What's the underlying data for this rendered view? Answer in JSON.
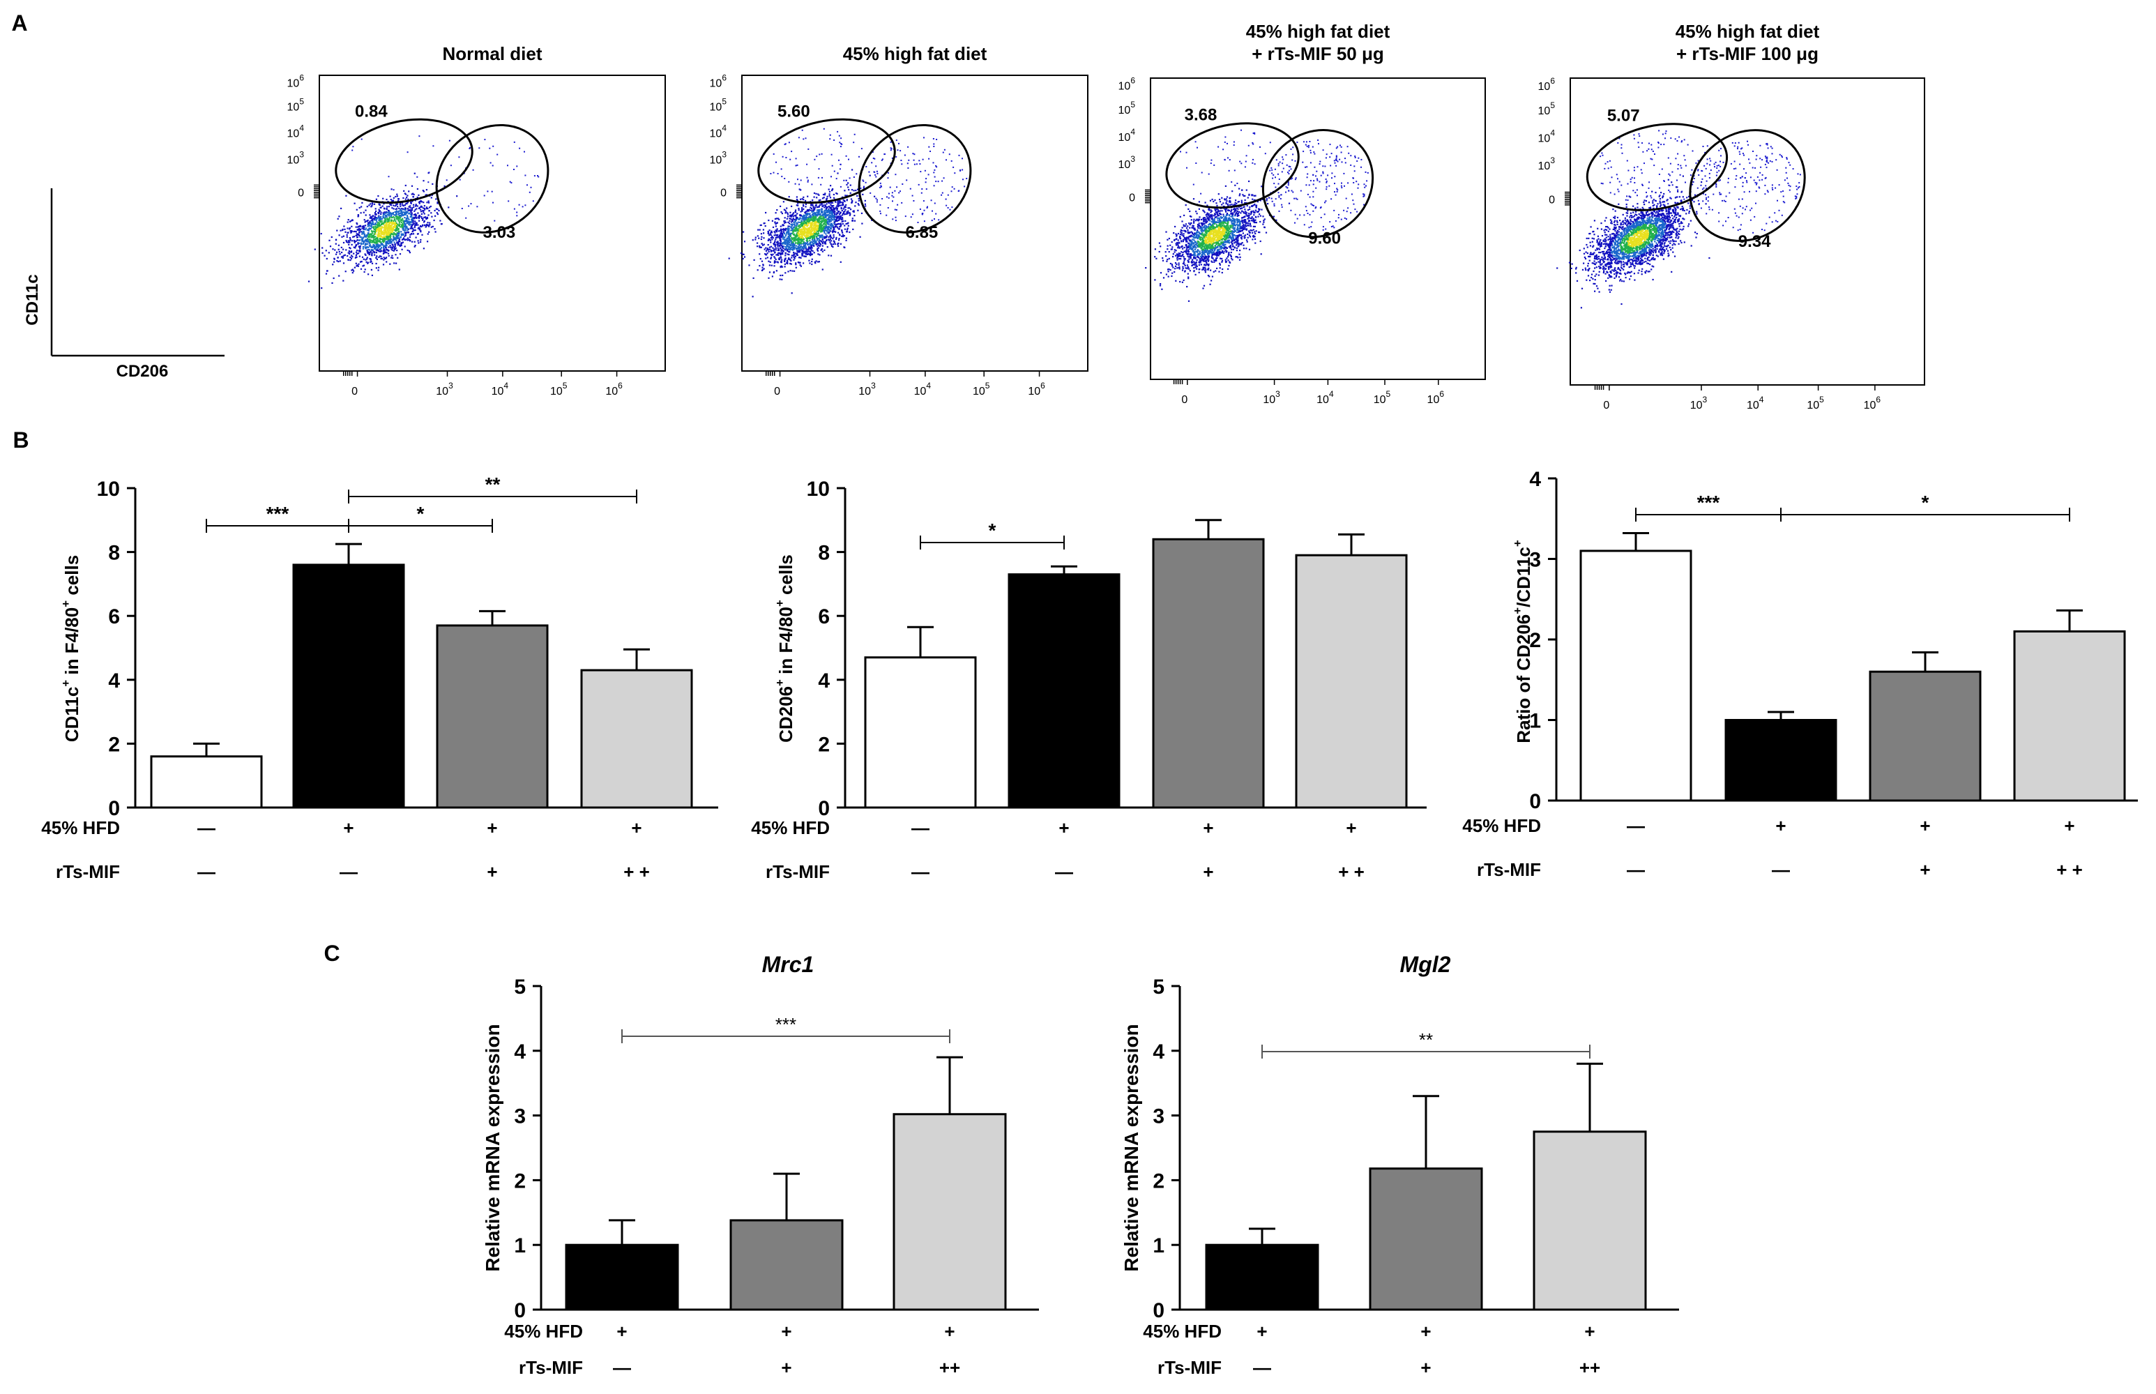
{
  "panel_labels": {
    "a": "A",
    "b": "B",
    "c": "C"
  },
  "axis_key": {
    "x": "CD206",
    "y": "CD11c"
  },
  "ticks": {
    "flow_y": [
      "10",
      "10",
      "10",
      "10",
      "0"
    ],
    "flow_y_exp": [
      "6",
      "5",
      "4",
      "3",
      ""
    ],
    "flow_x": [
      "0",
      "10",
      "10",
      "10",
      "10"
    ],
    "flow_x_exp": [
      "",
      "3",
      "4",
      "5",
      "6"
    ]
  },
  "group_labels": {
    "hfd": "45% HFD",
    "mif": "rTs-MIF"
  },
  "chart_data": [
    {
      "type": "scatter",
      "panel": "A",
      "plots": [
        {
          "title": [
            "Normal diet"
          ],
          "cd11c_gate": "0.84",
          "cd206_gate": "3.03"
        },
        {
          "title": [
            "45% high fat diet"
          ],
          "cd11c_gate": "5.60",
          "cd206_gate": "6.85"
        },
        {
          "title": [
            "45% high fat diet",
            "+ rTs-MIF 50 μg"
          ],
          "cd11c_gate": "3.68",
          "cd206_gate": "9.60"
        },
        {
          "title": [
            "45% high fat diet",
            "+ rTs-MIF 100 μg"
          ],
          "cd11c_gate": "5.07",
          "cd206_gate": "9.34"
        }
      ],
      "xlabel": "CD206",
      "ylabel": "CD11c"
    },
    {
      "type": "bar",
      "panel": "B",
      "ylabel": {
        "main": "CD11c",
        "sup1": "+",
        "mid": " in F4/80",
        "sup2": "+",
        "tail": " cells"
      },
      "ylim": [
        0,
        10
      ],
      "yticks": [
        0,
        2,
        4,
        6,
        8,
        10
      ],
      "values": [
        1.6,
        7.6,
        5.7,
        4.3
      ],
      "errors": [
        0.4,
        0.65,
        0.45,
        0.65
      ],
      "colors": [
        "#ffffff",
        "#000000",
        "#7f7f7f",
        "#d3d3d3"
      ],
      "hfd": [
        "—",
        "+",
        "+",
        "+"
      ],
      "mif": [
        "—",
        "—",
        "+",
        "+ +"
      ],
      "significance": [
        {
          "from": 0,
          "to": 1,
          "label": "***"
        },
        {
          "from": 1,
          "to": 2,
          "label": "*"
        },
        {
          "from": 1,
          "to": 3,
          "label": "**"
        }
      ]
    },
    {
      "type": "bar",
      "panel": "B",
      "ylabel": {
        "main": "CD206",
        "sup1": "+",
        "mid": " in F4/80",
        "sup2": "+",
        "tail": " cells"
      },
      "ylim": [
        0,
        10
      ],
      "yticks": [
        0,
        2,
        4,
        6,
        8,
        10
      ],
      "values": [
        4.7,
        7.3,
        8.4,
        7.9
      ],
      "errors": [
        0.95,
        0.25,
        0.6,
        0.65
      ],
      "colors": [
        "#ffffff",
        "#000000",
        "#7f7f7f",
        "#d3d3d3"
      ],
      "hfd": [
        "—",
        "+",
        "+",
        "+"
      ],
      "mif": [
        "—",
        "—",
        "+",
        "+ +"
      ],
      "significance": [
        {
          "from": 0,
          "to": 1,
          "label": "*"
        }
      ]
    },
    {
      "type": "bar",
      "panel": "B",
      "ylabel": {
        "main": "Ratio of CD206",
        "sup1": "+",
        "mid": "/CD11c",
        "sup2": "+",
        "tail": ""
      },
      "ylim": [
        0,
        4
      ],
      "yticks": [
        0,
        1,
        2,
        3,
        4
      ],
      "values": [
        3.1,
        1.0,
        1.6,
        2.1
      ],
      "errors": [
        0.22,
        0.1,
        0.24,
        0.26
      ],
      "colors": [
        "#ffffff",
        "#000000",
        "#7f7f7f",
        "#d3d3d3"
      ],
      "hfd": [
        "—",
        "+",
        "+",
        "+"
      ],
      "mif": [
        "—",
        "—",
        "+",
        "+ +"
      ],
      "significance": [
        {
          "from": 0,
          "to": 1,
          "label": "***"
        },
        {
          "from": 1,
          "to": 3,
          "label": "*"
        }
      ]
    },
    {
      "type": "bar",
      "panel": "C",
      "title": "Mrc1",
      "ylabel": {
        "main": "Relative mRNA expression",
        "sup1": "",
        "mid": "",
        "sup2": "",
        "tail": ""
      },
      "ylim": [
        0,
        5
      ],
      "yticks": [
        0,
        1,
        2,
        3,
        4,
        5
      ],
      "values": [
        1.0,
        1.38,
        3.02
      ],
      "errors": [
        0.38,
        0.72,
        0.88
      ],
      "colors": [
        "#000000",
        "#7f7f7f",
        "#d3d3d3"
      ],
      "hfd": [
        "+",
        "+",
        "+"
      ],
      "mif": [
        "—",
        "+",
        "++"
      ],
      "significance": [
        {
          "from": 0,
          "to": 2,
          "label": "***"
        }
      ]
    },
    {
      "type": "bar",
      "panel": "C",
      "title": "Mgl2",
      "ylabel": {
        "main": "Relative mRNA expression",
        "sup1": "",
        "mid": "",
        "sup2": "",
        "tail": ""
      },
      "ylim": [
        0,
        5
      ],
      "yticks": [
        0,
        1,
        2,
        3,
        4,
        5
      ],
      "values": [
        1.0,
        2.18,
        2.75
      ],
      "errors": [
        0.25,
        1.12,
        1.05
      ],
      "colors": [
        "#000000",
        "#7f7f7f",
        "#d3d3d3"
      ],
      "hfd": [
        "+",
        "+",
        "+"
      ],
      "mif": [
        "—",
        "+",
        "++"
      ],
      "significance": [
        {
          "from": 0,
          "to": 2,
          "label": "**"
        }
      ]
    }
  ]
}
